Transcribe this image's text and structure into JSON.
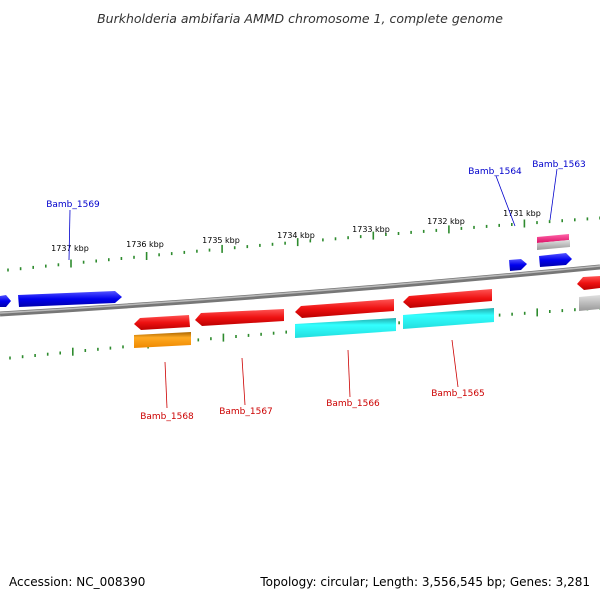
{
  "title": "Burkholderia ambifaria AMMD chromosome 1, complete genome",
  "footer": {
    "accession": "Accession: NC_008390",
    "summary": "Topology: circular; Length: 3,556,545 bp; Genes: 3,281"
  },
  "colors": {
    "backbone": "#888888",
    "ticks": "#2e8b2e",
    "forward_label": "#0000cc",
    "reverse_label": "#cc0000",
    "gene_blue": "#0000ee",
    "gene_red": "#ee1111",
    "gene_cyan": "#22eeee",
    "gene_orange": "#ff9900",
    "gene_pink": "#ee2277",
    "gene_gray": "#b8b8b8"
  },
  "kbp_labels": [
    "1737 kbp",
    "1736 kbp",
    "1735 kbp",
    "1734 kbp",
    "1733 kbp",
    "1732 kbp",
    "1731 kbp"
  ],
  "gene_labels": {
    "forward": [
      "Bamb_1569",
      "Bamb_1564",
      "Bamb_1563"
    ],
    "reverse": [
      "Bamb_1568",
      "Bamb_1567",
      "Bamb_1566",
      "Bamb_1565"
    ]
  }
}
